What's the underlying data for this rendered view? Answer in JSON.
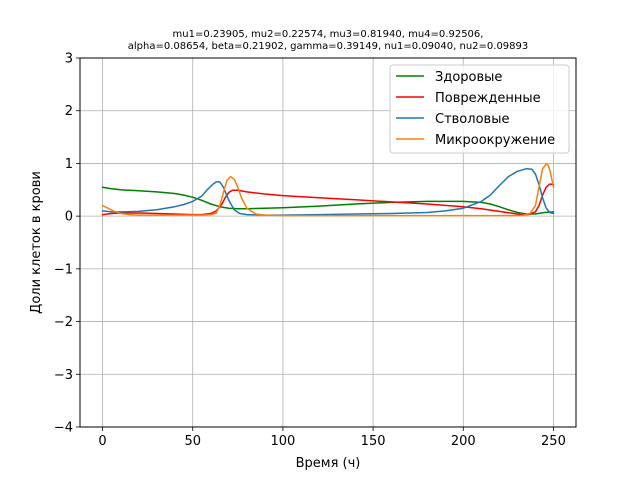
{
  "chart_data": {
    "type": "line",
    "title_lines": [
      "mu1=0.23905, mu2=0.22574, mu3=0.81940, mu4=0.92506,",
      "alpha=0.08654, beta=0.21902, gamma=0.39149, nu1=0.09040, nu2=0.09893"
    ],
    "xlabel": "Время (ч)",
    "ylabel": "Доли клеток в крови",
    "xlim": [
      -12.5,
      262.5
    ],
    "ylim": [
      -4,
      3
    ],
    "xticks": [
      0,
      50,
      100,
      150,
      200,
      250
    ],
    "yticks": [
      -4,
      -3,
      -2,
      -1,
      0,
      1,
      2,
      3
    ],
    "ytick_labels": [
      "−4",
      "−3",
      "−2",
      "−1",
      "0",
      "1",
      "2",
      "3"
    ],
    "grid": true,
    "legend_position": "top-right",
    "series": [
      {
        "name": "Здоровые",
        "color": "#008000",
        "x": [
          0,
          5,
          10,
          20,
          30,
          40,
          45,
          50,
          55,
          60,
          65,
          70,
          75,
          80,
          90,
          100,
          120,
          140,
          160,
          180,
          200,
          210,
          215,
          220,
          225,
          230,
          235,
          240,
          245,
          250
        ],
        "y": [
          0.55,
          0.52,
          0.5,
          0.48,
          0.46,
          0.43,
          0.4,
          0.36,
          0.3,
          0.23,
          0.18,
          0.15,
          0.14,
          0.14,
          0.15,
          0.16,
          0.19,
          0.23,
          0.26,
          0.28,
          0.28,
          0.26,
          0.23,
          0.18,
          0.12,
          0.07,
          0.04,
          0.04,
          0.07,
          0.08
        ]
      },
      {
        "name": "Поврежденные",
        "color": "#ff0000",
        "x": [
          0,
          5,
          10,
          20,
          30,
          40,
          50,
          55,
          60,
          63,
          66,
          68,
          70,
          72,
          75,
          80,
          90,
          100,
          120,
          140,
          160,
          180,
          200,
          210,
          220,
          228,
          232,
          236,
          240,
          242,
          244,
          246,
          248,
          250
        ],
        "y": [
          0.03,
          0.05,
          0.06,
          0.06,
          0.05,
          0.04,
          0.03,
          0.03,
          0.05,
          0.1,
          0.22,
          0.35,
          0.45,
          0.49,
          0.49,
          0.46,
          0.42,
          0.39,
          0.35,
          0.31,
          0.27,
          0.23,
          0.18,
          0.14,
          0.09,
          0.05,
          0.03,
          0.03,
          0.08,
          0.2,
          0.4,
          0.55,
          0.61,
          0.6
        ]
      },
      {
        "name": "Стволовые",
        "color": "#1f77b4",
        "x": [
          0,
          5,
          10,
          20,
          30,
          40,
          45,
          50,
          55,
          58,
          61,
          63,
          65,
          67,
          70,
          73,
          76,
          80,
          90,
          100,
          120,
          140,
          160,
          180,
          190,
          200,
          210,
          215,
          220,
          225,
          230,
          235,
          238,
          240,
          242,
          244,
          246,
          248,
          250
        ],
        "y": [
          0.1,
          0.08,
          0.08,
          0.09,
          0.12,
          0.18,
          0.22,
          0.28,
          0.38,
          0.5,
          0.6,
          0.65,
          0.65,
          0.55,
          0.3,
          0.12,
          0.05,
          0.03,
          0.02,
          0.02,
          0.03,
          0.04,
          0.05,
          0.07,
          0.1,
          0.15,
          0.28,
          0.4,
          0.58,
          0.75,
          0.85,
          0.9,
          0.89,
          0.8,
          0.6,
          0.35,
          0.15,
          0.07,
          0.05
        ]
      },
      {
        "name": "Микроокружение",
        "color": "#ff7f0e",
        "x": [
          0,
          3,
          6,
          10,
          15,
          20,
          30,
          40,
          50,
          55,
          60,
          63,
          65,
          67,
          69,
          71,
          73,
          75,
          77,
          80,
          85,
          90,
          100,
          120,
          150,
          180,
          200,
          220,
          230,
          234,
          237,
          240,
          242,
          244,
          246,
          247,
          248,
          250
        ],
        "y": [
          0.2,
          0.15,
          0.1,
          0.05,
          0.03,
          0.02,
          0.02,
          0.02,
          0.02,
          0.02,
          0.03,
          0.06,
          0.2,
          0.45,
          0.68,
          0.75,
          0.7,
          0.55,
          0.35,
          0.15,
          0.04,
          0.02,
          0.01,
          0.01,
          0.01,
          0.01,
          0.01,
          0.01,
          0.01,
          0.02,
          0.05,
          0.2,
          0.55,
          0.9,
          0.99,
          0.97,
          0.88,
          0.55
        ]
      }
    ]
  }
}
